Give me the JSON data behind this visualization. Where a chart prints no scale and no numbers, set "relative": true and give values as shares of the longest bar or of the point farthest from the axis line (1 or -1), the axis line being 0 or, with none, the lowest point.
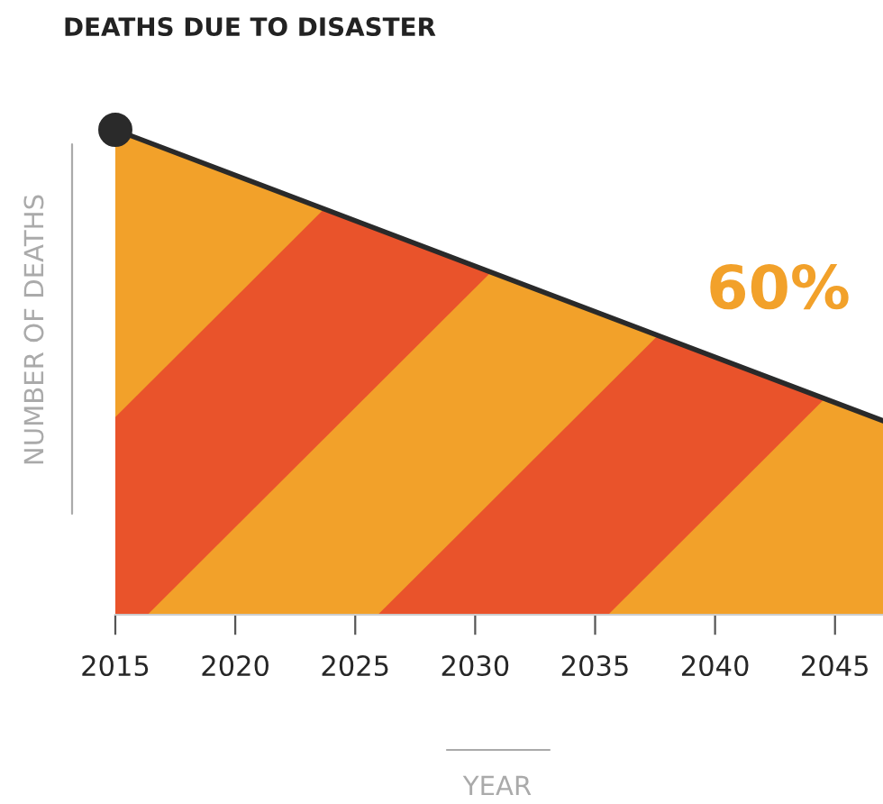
{
  "chart_data": {
    "type": "area",
    "title": "DEATHS DUE TO DISASTER",
    "xlabel": "YEAR",
    "ylabel": "NUMBER OF DEATHS",
    "x": [
      2015,
      2047
    ],
    "relative": true,
    "xlim": [
      2015,
      2047
    ],
    "xticks": [
      2015,
      2020,
      2025,
      2030,
      2035,
      2040,
      2045
    ],
    "series": [
      {
        "color": "#f2a12a",
        "values": [
          1,
          0.4
        ]
      },
      {
        "type": "scatter",
        "color": "#2a2a2a",
        "x": [
          2015
        ],
        "values": [
          1
        ],
        "marker": "circle"
      }
    ],
    "annotations": [
      "60%"
    ],
    "grid": false,
    "legend": false
  }
}
